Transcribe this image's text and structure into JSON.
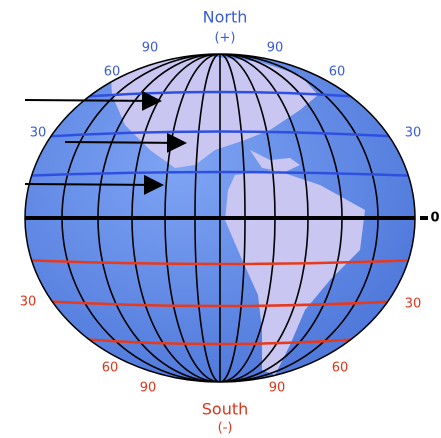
{
  "top": {
    "title": "North",
    "sign": "(+)"
  },
  "bottom": {
    "title": "South",
    "sign": "(-)"
  },
  "north_labels": [
    "90",
    "90",
    "60",
    "60",
    "30",
    "30"
  ],
  "equator_label": "0",
  "south_labels": [
    "30",
    "30",
    "60",
    "60",
    "90",
    "90"
  ]
}
